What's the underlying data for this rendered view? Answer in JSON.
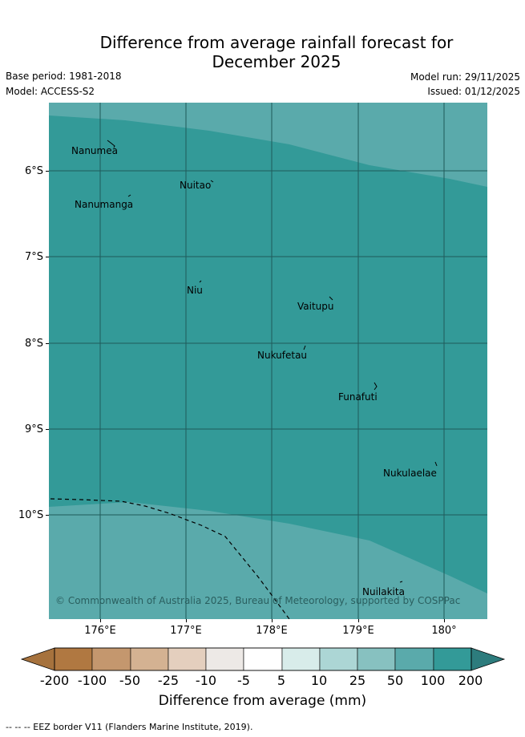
{
  "header": {
    "title": "Difference from average rainfall forecast for\nDecember 2025",
    "base_period": "Base period: 1981-2018",
    "model": "Model: ACCESS-S2",
    "model_run": "Model run: 29/11/2025",
    "issued": "Issued: 01/12/2025"
  },
  "map": {
    "lat_labels": [
      "6°S",
      "7°S",
      "8°S",
      "9°S",
      "10°S"
    ],
    "lon_labels": [
      "176°E",
      "177°E",
      "178°E",
      "179°E",
      "180°"
    ],
    "places": {
      "nanumea": "Nanumea",
      "nuitao": "Nuitao",
      "nanumanga": "Nanumanga",
      "niu": "Niu",
      "vaitupu": "Vaitupu",
      "nukufetau": "Nukufetau",
      "funafuti": "Funafuti",
      "nukulaelae": "Nukulaelae",
      "nuilakita": "Nuilakita"
    },
    "copyright": "© Commonwealth of Australia 2025, Bureau of Meteorology, supported by COSPPac",
    "colors": {
      "band_50_100": "#5aaaab",
      "band_100_200": "#339a98",
      "grid": "#1f5a5a"
    }
  },
  "colorbar": {
    "ticks": [
      "-200",
      "-100",
      "-50",
      "-25",
      "-10",
      "-5",
      "5",
      "10",
      "25",
      "50",
      "100",
      "200"
    ],
    "colors": [
      "#a6723d",
      "#b07841",
      "#c4976e",
      "#d4b292",
      "#e4cfbe",
      "#ede9e6",
      "#ffffff",
      "#d8ecea",
      "#acd6d5",
      "#87c1c0",
      "#5aaaab",
      "#339a98",
      "#2d7c7d"
    ],
    "title": "Difference from average (mm)"
  },
  "footer": "--  --  -- EEZ border V11 (Flanders Marine Institute, 2019)."
}
